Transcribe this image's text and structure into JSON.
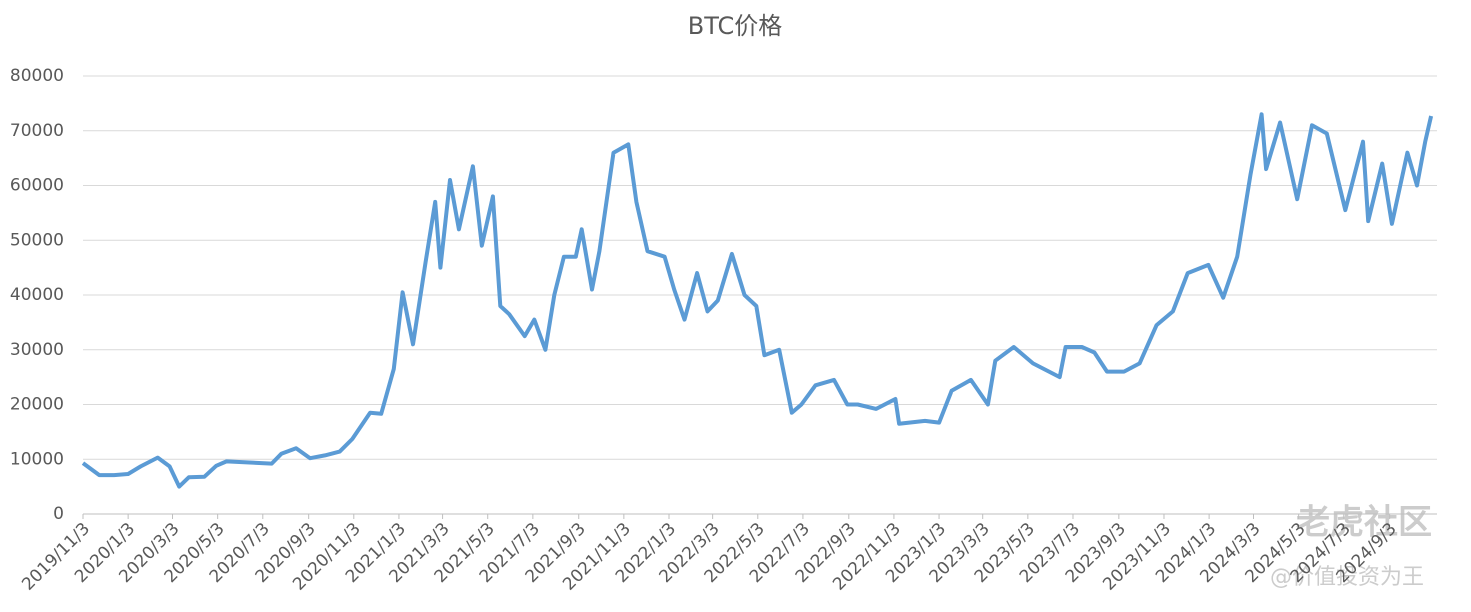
{
  "chart_data": {
    "type": "line",
    "title": "BTC价格",
    "x": [
      "2019/11/3",
      "2019/11/25",
      "2019/12/15",
      "2020/1/3",
      "2020/1/20",
      "2020/2/12",
      "2020/2/28",
      "2020/3/12",
      "2020/3/25",
      "2020/4/15",
      "2020/5/1",
      "2020/5/15",
      "2020/6/15",
      "2020/7/15",
      "2020/7/28",
      "2020/8/17",
      "2020/9/5",
      "2020/9/25",
      "2020/10/15",
      "2020/11/1",
      "2020/11/25",
      "2020/12/10",
      "2020/12/27",
      "2021/1/8",
      "2021/1/22",
      "2021/2/8",
      "2021/2/21",
      "2021/2/28",
      "2021/3/13",
      "2021/3/25",
      "2021/4/13",
      "2021/4/25",
      "2021/5/10",
      "2021/5/20",
      "2021/6/1",
      "2021/6/22",
      "2021/7/5",
      "2021/7/20",
      "2021/8/1",
      "2021/8/14",
      "2021/8/30",
      "2021/9/7",
      "2021/9/21",
      "2021/10/1",
      "2021/10/20",
      "2021/11/9",
      "2021/11/20",
      "2021/12/5",
      "2021/12/28",
      "2022/1/10",
      "2022/1/24",
      "2022/2/10",
      "2022/2/24",
      "2022/3/10",
      "2022/3/29",
      "2022/4/15",
      "2022/5/1",
      "2022/5/12",
      "2022/6/1",
      "2022/6/18",
      "2022/7/1",
      "2022/7/20",
      "2022/8/14",
      "2022/9/1",
      "2022/9/15",
      "2022/10/10",
      "2022/11/5",
      "2022/11/10",
      "2022/12/15",
      "2023/1/3",
      "2023/1/20",
      "2023/2/15",
      "2023/3/10",
      "2023/3/20",
      "2023/4/14",
      "2023/5/10",
      "2023/6/15",
      "2023/6/23",
      "2023/7/15",
      "2023/8/1",
      "2023/8/18",
      "2023/9/10",
      "2023/10/1",
      "2023/10/24",
      "2023/11/15",
      "2023/12/5",
      "2024/1/2",
      "2024/1/22",
      "2024/2/10",
      "2024/2/28",
      "2024/3/14",
      "2024/3/20",
      "2024/4/8",
      "2024/5/1",
      "2024/5/21",
      "2024/6/10",
      "2024/7/5",
      "2024/7/29",
      "2024/8/5",
      "2024/8/24",
      "2024/9/6",
      "2024/9/27",
      "2024/10/10",
      "2024/10/21",
      "2024/10/29"
    ],
    "series": [
      {
        "name": "BTC",
        "color": "#5b9bd5",
        "values": [
          9300,
          7100,
          7100,
          7300,
          8700,
          10300,
          8700,
          5000,
          6700,
          6800,
          8800,
          9600,
          9400,
          9200,
          11000,
          12000,
          10200,
          10700,
          11400,
          13700,
          18500,
          18300,
          26500,
          40500,
          31000,
          46000,
          57000,
          45000,
          61000,
          52000,
          63500,
          49000,
          58000,
          38000,
          36500,
          32500,
          35500,
          30000,
          40000,
          47000,
          47000,
          52000,
          41000,
          48000,
          66000,
          67500,
          57000,
          48000,
          47000,
          41000,
          35500,
          44000,
          37000,
          39000,
          47500,
          40000,
          38000,
          29000,
          30000,
          18500,
          20000,
          23500,
          24500,
          20000,
          20000,
          19200,
          21000,
          16500,
          17000,
          16700,
          22500,
          24500,
          20000,
          28000,
          30500,
          27500,
          25000,
          30500,
          30500,
          29500,
          26000,
          26000,
          27500,
          34500,
          37000,
          44000,
          45500,
          39500,
          47000,
          62000,
          73000,
          63000,
          71500,
          57500,
          71000,
          69500,
          55500,
          68000,
          53500,
          64000,
          53000,
          66000,
          60000,
          68000,
          72700
        ]
      }
    ],
    "xlim": [
      "2019/11/3",
      "2024/11/6"
    ],
    "xticks": [
      "2019/11/3",
      "2020/1/3",
      "2020/3/3",
      "2020/5/3",
      "2020/7/3",
      "2020/9/3",
      "2020/11/3",
      "2021/1/3",
      "2021/3/3",
      "2021/5/3",
      "2021/7/3",
      "2021/9/3",
      "2021/11/3",
      "2022/1/3",
      "2022/3/3",
      "2022/5/3",
      "2022/7/3",
      "2022/9/3",
      "2022/11/3",
      "2023/1/3",
      "2023/3/3",
      "2023/5/3",
      "2023/7/3",
      "2023/9/3",
      "2023/11/3",
      "2024/1/3",
      "2024/3/3",
      "2024/5/3",
      "2024/7/3",
      "2024/9/3"
    ],
    "ylim": [
      0,
      80000
    ],
    "yticks": [
      0,
      10000,
      20000,
      30000,
      40000,
      50000,
      60000,
      70000,
      80000
    ],
    "grid": true,
    "watermark": "老虎社区",
    "watermark_sub": "@价值投资为王"
  }
}
